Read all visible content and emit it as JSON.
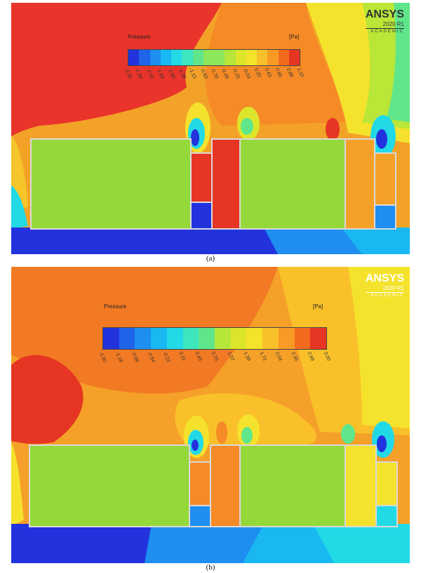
{
  "figure": {
    "panels": [
      {
        "id": "a",
        "caption": "(a)",
        "brand": {
          "name": "ANSYS",
          "version": "2020 R1",
          "edition": "ACADEMIC"
        },
        "colorbar": {
          "title": "Pressure",
          "unit": "[Pa]",
          "ticks": [
            "-2.50",
            "-2.28",
            "-2.05",
            "-1.83",
            "-1.60",
            "-1.38",
            "-1.15",
            "-0.93",
            "-0.70",
            "-0.48",
            "-0.25",
            "-0.03",
            "0.20",
            "0.43",
            "0.65",
            "0.88",
            "1.10"
          ]
        }
      },
      {
        "id": "b",
        "caption": "(b)",
        "brand": {
          "name": "ANSYS",
          "version": "2020 R1",
          "edition": "ACADEMIC"
        },
        "colorbar": {
          "title": "Pressure",
          "unit": "[Pa]",
          "ticks": [
            "-1.50",
            "-1.18",
            "-0.86",
            "-0.54",
            "-0.21",
            "0.11",
            "0.43",
            "0.75",
            "1.07",
            "1.39",
            "1.71",
            "2.04",
            "2.36",
            "2.68",
            "3.00"
          ]
        }
      }
    ],
    "colors": {
      "jet": [
        "#2233dd",
        "#1f63e8",
        "#1e8ef0",
        "#19b8f2",
        "#22d9e6",
        "#3de6bd",
        "#5fe68b",
        "#8ee65a",
        "#b6e63a",
        "#dde52b",
        "#f5e32a",
        "#f9c02a",
        "#f89a24",
        "#f26a1e",
        "#e63522"
      ],
      "building_fill": "#94d83a",
      "outline": "#d9d9d9"
    }
  }
}
